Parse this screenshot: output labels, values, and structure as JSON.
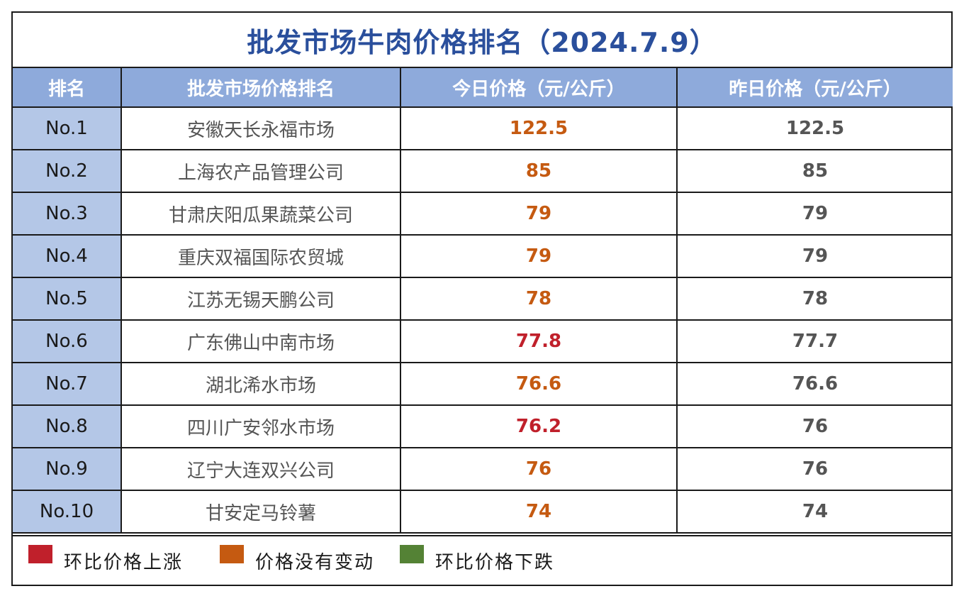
{
  "title": "批发市场牛肉价格排名（2024.7.9）",
  "headers": {
    "rank": "排名",
    "market": "批发市场价格排名",
    "today": "今日价格（元/公斤）",
    "yesterday": "昨日价格（元/公斤）"
  },
  "colors": {
    "up": "#c0202b",
    "flat": "#c55a11",
    "down": "#548235"
  },
  "rows": [
    {
      "rank": "No.1",
      "market": "安徽天长永福市场",
      "today": "122.5",
      "yesterday": "122.5",
      "trend": "flat"
    },
    {
      "rank": "No.2",
      "market": "上海农产品管理公司",
      "today": "85",
      "yesterday": "85",
      "trend": "flat"
    },
    {
      "rank": "No.3",
      "market": "甘肃庆阳瓜果蔬菜公司",
      "today": "79",
      "yesterday": "79",
      "trend": "flat"
    },
    {
      "rank": "No.4",
      "market": "重庆双福国际农贸城",
      "today": "79",
      "yesterday": "79",
      "trend": "flat"
    },
    {
      "rank": "No.5",
      "market": "江苏无锡天鹏公司",
      "today": "78",
      "yesterday": "78",
      "trend": "flat"
    },
    {
      "rank": "No.6",
      "market": "广东佛山中南市场",
      "today": "77.8",
      "yesterday": "77.7",
      "trend": "up"
    },
    {
      "rank": "No.7",
      "market": "湖北浠水市场",
      "today": "76.6",
      "yesterday": "76.6",
      "trend": "flat"
    },
    {
      "rank": "No.8",
      "market": "四川广安邻水市场",
      "today": "76.2",
      "yesterday": "76",
      "trend": "up"
    },
    {
      "rank": "No.9",
      "market": "辽宁大连双兴公司",
      "today": "76",
      "yesterday": "76",
      "trend": "flat"
    },
    {
      "rank": "No.10",
      "market": "甘安定马铃薯",
      "today": "74",
      "yesterday": "74",
      "trend": "flat"
    }
  ],
  "legend": {
    "up": "环比价格上涨",
    "flat": "价格没有变动",
    "down": "环比价格下跌"
  }
}
